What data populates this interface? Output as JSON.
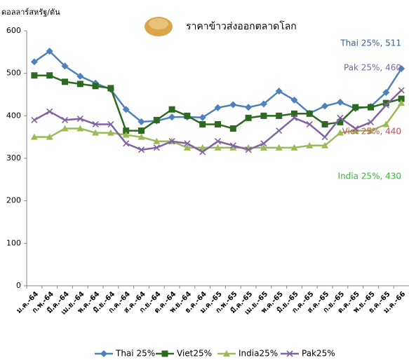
{
  "chart_data": {
    "type": "line",
    "title": "ราคาข้าวส่งออกตลาดโลก",
    "y_label": "ดอลลาร์สหรัฐ/ตัน",
    "categories": [
      "ม.ค.-64",
      "ก.พ.-64",
      "มี.ค.-64",
      "เม.ย.-64",
      "พ.ค.-64",
      "มิ.ย.-64",
      "ก.ค.-64",
      "ส.ค.-64",
      "ก.ย.-64",
      "ต.ค.-64",
      "พ.ย.-64",
      "ธ.ค.-64",
      "ม.ค.-65",
      "ก.พ.-65",
      "มี.ค.-65",
      "เม.ย.-65",
      "พ.ค.-65",
      "มิ.ย.-65",
      "ก.ค.-65",
      "ส.ค.-65",
      "ก.ย.-65",
      "ต.ค.-65",
      "พ.ย.-65",
      "ธ.ค.-65",
      "ม.ค.-66"
    ],
    "series": [
      {
        "name": "Thai 25%",
        "color": "#4f81bd",
        "marker": "diamond",
        "values": [
          527,
          552,
          517,
          493,
          477,
          462,
          415,
          386,
          388,
          397,
          397,
          396,
          419,
          426,
          420,
          428,
          458,
          437,
          406,
          423,
          432,
          417,
          422,
          455,
          511
        ]
      },
      {
        "name": "Viet25%",
        "color": "#2d6a1f",
        "marker": "square",
        "values": [
          495,
          495,
          480,
          475,
          470,
          465,
          365,
          365,
          390,
          415,
          400,
          380,
          380,
          370,
          395,
          400,
          400,
          405,
          405,
          380,
          385,
          420,
          420,
          430,
          440
        ]
      },
      {
        "name": "India25%",
        "color": "#9bbb59",
        "marker": "triangle",
        "values": [
          350,
          350,
          370,
          370,
          360,
          360,
          355,
          350,
          340,
          340,
          325,
          325,
          325,
          325,
          325,
          325,
          325,
          325,
          330,
          330,
          360,
          365,
          365,
          380,
          430
        ]
      },
      {
        "name": "Pak25%",
        "color": "#8064a2",
        "marker": "x",
        "values": [
          390,
          410,
          390,
          393,
          380,
          380,
          335,
          320,
          325,
          340,
          335,
          315,
          340,
          330,
          320,
          335,
          365,
          395,
          380,
          350,
          395,
          370,
          385,
          425,
          460
        ]
      }
    ],
    "annotations": [
      {
        "text": "Thai 25%, 511",
        "color": "#376092"
      },
      {
        "text": "Pak 25%, 460",
        "color": "#8064a2"
      },
      {
        "text": "Viet 25%, 440",
        "color": "#c0504d"
      },
      {
        "text": "India 25%, 430",
        "color": "#3cb43c"
      }
    ],
    "ylim": [
      0,
      600
    ],
    "yticks": [
      0,
      100,
      200,
      300,
      400,
      500,
      600
    ],
    "grid": false,
    "legend": "bottom"
  }
}
